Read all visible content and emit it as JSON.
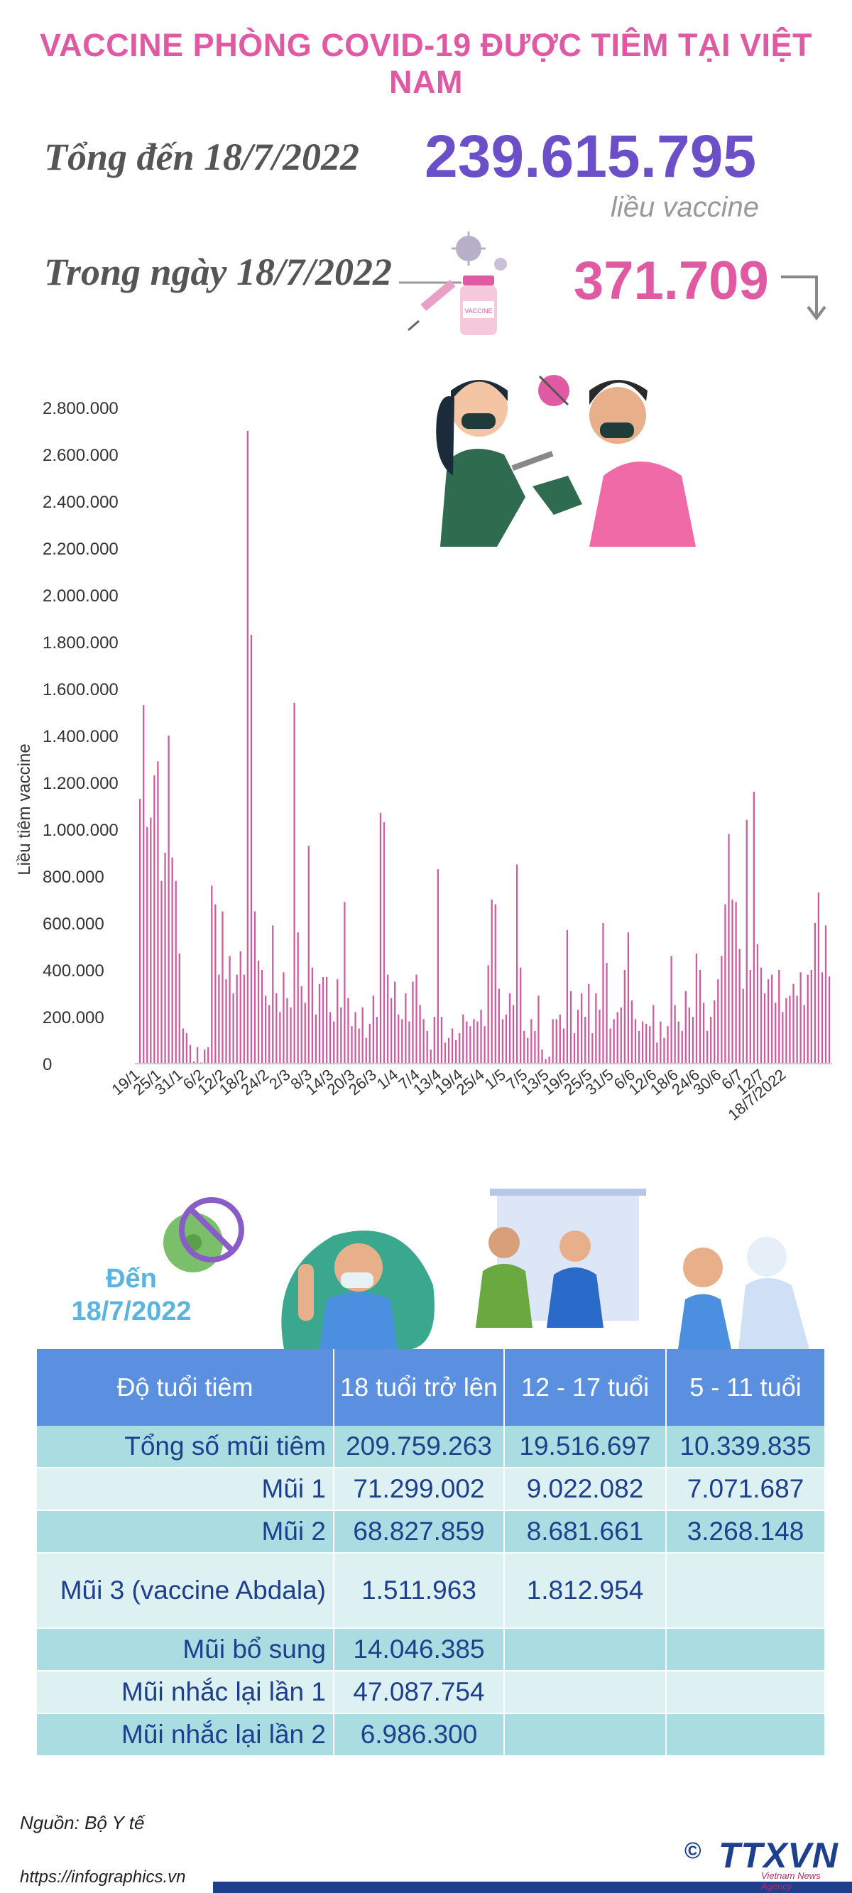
{
  "title": "VACCINE PHÒNG COVID-19 ĐƯỢC TIÊM TẠI VIỆT NAM",
  "summary": {
    "total_label": "Tổng đến 18/7/2022",
    "total_value": "239.615.795",
    "total_unit": "liều vaccine",
    "day_label": "Trong ngày 18/7/2022",
    "day_value": "371.709"
  },
  "illustration": {
    "vial_label": "VACCINE"
  },
  "colors": {
    "title": "#e05aa3",
    "total": "#6a4fc8",
    "bar": "#cc5c9e",
    "table_header": "#5b8fe0",
    "table_odd": "#a9dde2",
    "table_even": "#ddf1f3",
    "table_text": "#1d3f8c"
  },
  "chart_data": {
    "type": "bar",
    "ylabel": "Liều tiêm vaccine",
    "ylim": [
      0,
      2800000
    ],
    "yticks": [
      "0",
      "200.000",
      "400.000",
      "600.000",
      "800.000",
      "1.000.000",
      "1.200.000",
      "1.400.000",
      "1.600.000",
      "1.800.000",
      "2.000.000",
      "2.200.000",
      "2.400.000",
      "2.600.000",
      "2.800.000"
    ],
    "xtick_labels": [
      "19/1",
      "25/1",
      "31/1",
      "6/2",
      "12/2",
      "18/2",
      "24/2",
      "2/3",
      "8/3",
      "14/3",
      "20/3",
      "26/3",
      "1/4",
      "7/4",
      "13/4",
      "19/4",
      "25/4",
      "1/5",
      "7/5",
      "13/5",
      "19/5",
      "25/5",
      "31/5",
      "6/6",
      "12/6",
      "18/6",
      "24/6",
      "30/6",
      "6/7",
      "12/7",
      "18/7/2022"
    ],
    "values": [
      1130000,
      1530000,
      1010000,
      1050000,
      1230000,
      1290000,
      780000,
      900000,
      1400000,
      880000,
      780000,
      470000,
      150000,
      130000,
      80000,
      10000,
      70000,
      5000,
      60000,
      70000,
      760000,
      680000,
      380000,
      650000,
      360000,
      460000,
      300000,
      380000,
      480000,
      380000,
      2700000,
      1830000,
      650000,
      440000,
      400000,
      290000,
      250000,
      590000,
      300000,
      220000,
      390000,
      280000,
      240000,
      1540000,
      560000,
      330000,
      260000,
      930000,
      410000,
      210000,
      340000,
      370000,
      370000,
      220000,
      180000,
      360000,
      240000,
      690000,
      280000,
      160000,
      220000,
      150000,
      240000,
      110000,
      170000,
      290000,
      200000,
      1070000,
      1030000,
      380000,
      280000,
      350000,
      210000,
      190000,
      300000,
      180000,
      350000,
      380000,
      250000,
      190000,
      140000,
      60000,
      200000,
      830000,
      200000,
      90000,
      110000,
      150000,
      100000,
      130000,
      210000,
      180000,
      160000,
      190000,
      180000,
      230000,
      160000,
      420000,
      700000,
      680000,
      320000,
      190000,
      210000,
      300000,
      250000,
      850000,
      410000,
      140000,
      110000,
      190000,
      140000,
      290000,
      60000,
      20000,
      30000,
      190000,
      190000,
      210000,
      150000,
      570000,
      310000,
      130000,
      230000,
      300000,
      200000,
      340000,
      130000,
      300000,
      230000,
      600000,
      430000,
      150000,
      190000,
      220000,
      240000,
      400000,
      560000,
      270000,
      190000,
      140000,
      180000,
      170000,
      160000,
      250000,
      90000,
      180000,
      110000,
      160000,
      460000,
      250000,
      180000,
      140000,
      310000,
      240000,
      200000,
      470000,
      400000,
      260000,
      140000,
      200000,
      270000,
      360000,
      460000,
      680000,
      980000,
      700000,
      690000,
      490000,
      320000,
      1040000,
      400000,
      1160000,
      510000,
      410000,
      300000,
      360000,
      380000,
      260000,
      400000,
      220000,
      280000,
      290000,
      340000,
      290000,
      390000,
      250000,
      380000,
      400000,
      600000,
      730000,
      390000,
      590000,
      372000
    ]
  },
  "age_section": {
    "label_line1": "Đến",
    "label_line2": "18/7/2022"
  },
  "table": {
    "headers": [
      "Độ tuổi tiêm",
      "18 tuổi trở lên",
      "12 - 17 tuổi",
      "5 - 11 tuổi"
    ],
    "rows": [
      {
        "label": "Tổng số mũi tiêm",
        "v18": "209.759.263",
        "v12": "19.516.697",
        "v5": "10.339.835"
      },
      {
        "label": "Mũi 1",
        "v18": "71.299.002",
        "v12": "9.022.082",
        "v5": "7.071.687"
      },
      {
        "label": "Mũi 2",
        "v18": "68.827.859",
        "v12": "8.681.661",
        "v5": "3.268.148"
      },
      {
        "label": "Mũi 3 (vaccine Abdala)",
        "v18": "1.511.963",
        "v12": "1.812.954",
        "v5": ""
      },
      {
        "label": "Mũi bổ sung",
        "v18": "14.046.385",
        "v12": "",
        "v5": ""
      },
      {
        "label": "Mũi nhắc lại lần 1",
        "v18": "47.087.754",
        "v12": "",
        "v5": ""
      },
      {
        "label": "Mũi nhắc lại lần 2",
        "v18": "6.986.300",
        "v12": "",
        "v5": ""
      }
    ]
  },
  "footer": {
    "source": "Nguồn: Bộ Y tế",
    "link": "https://infographics.vn",
    "copyright": "©",
    "logo": "TTXVN",
    "logo_sub": "Vietnam News Agency"
  }
}
